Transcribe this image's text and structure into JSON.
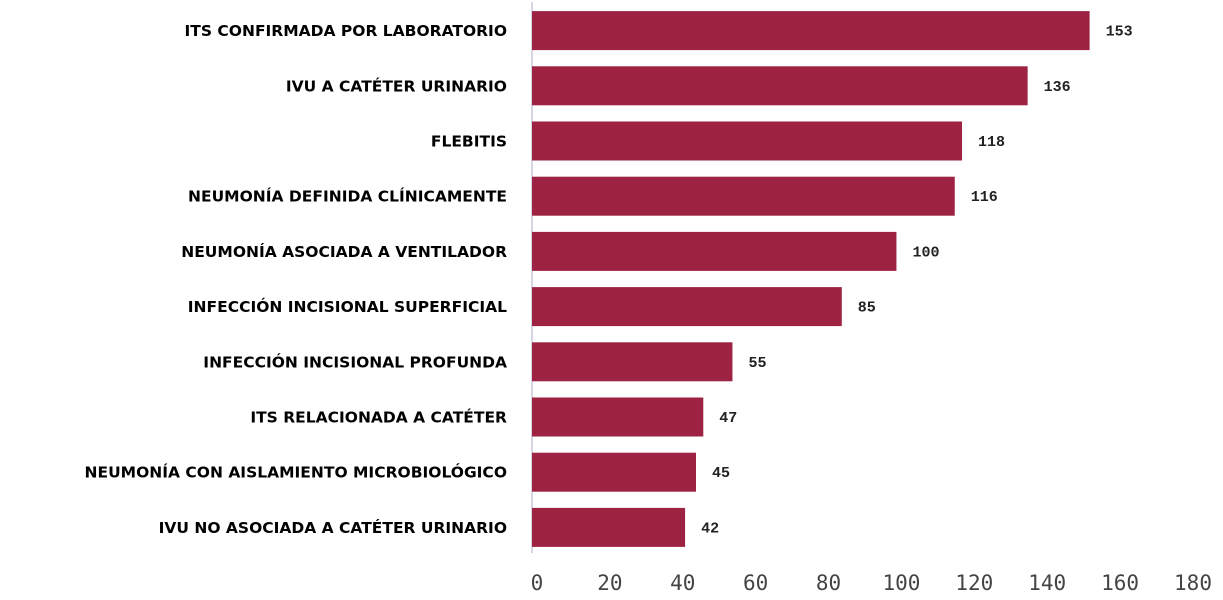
{
  "chart_data": {
    "type": "bar",
    "orientation": "horizontal",
    "categories": [
      "ITS CONFIRMADA POR LABORATORIO",
      "IVU A CATÉTER URINARIO",
      "FLEBITIS",
      "NEUMONÍA DEFINIDA CLÍNICAMENTE",
      "NEUMONÍA ASOCIADA A VENTILADOR",
      "INFECCIÓN INCISIONAL SUPERFICIAL",
      "INFECCIÓN INCISIONAL PROFUNDA",
      "ITS RELACIONADA A CATÉTER",
      "NEUMONÍA CON AISLAMIENTO MICROBIOLÓGICO",
      "IVU NO ASOCIADA A CATÉTER URINARIO"
    ],
    "values": [
      153,
      136,
      118,
      116,
      100,
      85,
      55,
      47,
      45,
      42
    ],
    "color": "#9e2241",
    "xlim": [
      0,
      180
    ],
    "xticks": [
      0,
      20,
      40,
      60,
      80,
      100,
      120,
      140,
      160,
      180
    ],
    "grid": false
  }
}
